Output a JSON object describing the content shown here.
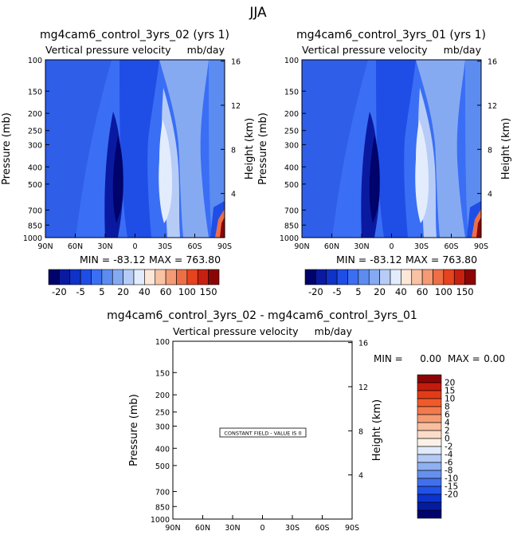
{
  "season": "JJA",
  "panels": [
    {
      "title": "mg4cam6_control_3yrs_02 (yrs 1)",
      "variable": "Vertical pressure velocity",
      "units": "mb/day",
      "min_label": "MIN = -83.12",
      "max_label": "MAX = 763.80"
    },
    {
      "title": "mg4cam6_control_3yrs_01 (yrs 1)",
      "variable": "Vertical pressure velocity",
      "units": "mb/day",
      "min_label": "MIN = -83.12",
      "max_label": "MAX = 763.80"
    }
  ],
  "diff_panel": {
    "title": "mg4cam6_control_3yrs_02 - mg4cam6_control_3yrs_01",
    "variable": "Vertical pressure velocity",
    "units": "mb/day",
    "min_text": "MIN =",
    "min_value": "0.00",
    "max_text": "MAX =",
    "max_value": "0.00",
    "constant_note": "CONSTANT FIELD - VALUE IS 0"
  },
  "chart_data": [
    {
      "type": "heatmap",
      "title": "mg4cam6_control_3yrs_02 (yrs 1)",
      "xlabel": "",
      "ylabel": "Pressure (mb)",
      "y2label": "Height (km)",
      "x_ticks": [
        "90N",
        "60N",
        "30N",
        "0",
        "30S",
        "60S",
        "90S"
      ],
      "y_ticks": [
        "100",
        "150",
        "200",
        "250",
        "300",
        "400",
        "500",
        "700",
        "850",
        "1000"
      ],
      "y2_ticks": [
        "16",
        "12",
        "8",
        "4"
      ],
      "min": -83.12,
      "max": 763.8
    },
    {
      "type": "heatmap",
      "title": "mg4cam6_control_3yrs_01 (yrs 1)",
      "xlabel": "",
      "ylabel": "Pressure (mb)",
      "y2label": "Height (km)",
      "x_ticks": [
        "90N",
        "60N",
        "30N",
        "0",
        "30S",
        "60S",
        "90S"
      ],
      "y_ticks": [
        "100",
        "150",
        "200",
        "250",
        "300",
        "400",
        "500",
        "700",
        "850",
        "1000"
      ],
      "y2_ticks": [
        "16",
        "12",
        "8",
        "4"
      ],
      "min": -83.12,
      "max": 763.8
    },
    {
      "type": "heatmap",
      "title": "mg4cam6_control_3yrs_02 - mg4cam6_control_3yrs_01",
      "ylabel": "Pressure (mb)",
      "y2label": "Height (km)",
      "x_ticks": [
        "90N",
        "60N",
        "30N",
        "0",
        "30S",
        "60S",
        "90S"
      ],
      "y_ticks": [
        "100",
        "150",
        "200",
        "250",
        "300",
        "400",
        "500",
        "700",
        "850",
        "1000"
      ],
      "y2_ticks": [
        "16",
        "12",
        "8",
        "4"
      ],
      "min": 0.0,
      "max": 0.0,
      "constant_value": 0
    }
  ],
  "colorbar_main": {
    "labels": [
      "-20",
      "-5",
      "5",
      "20",
      "40",
      "60",
      "100",
      "150"
    ],
    "colors": [
      "#00036b",
      "#0a1aa0",
      "#0f32c8",
      "#1f4ee6",
      "#3a6ef5",
      "#5c8cf0",
      "#86aaf2",
      "#b6ccf7",
      "#e2ecfc",
      "#fde8d8",
      "#f8c2a3",
      "#f49a74",
      "#ee6e46",
      "#e6431f",
      "#c82010",
      "#8b0506"
    ]
  },
  "colorbar_diff": {
    "labels": [
      "20",
      "15",
      "10",
      "8",
      "6",
      "4",
      "2",
      "0",
      "-2",
      "-4",
      "-6",
      "-8",
      "-10",
      "-15",
      "-20"
    ],
    "colors": [
      "#8b0506",
      "#c31b0e",
      "#e23c17",
      "#f05a2a",
      "#f27a4c",
      "#f59c74",
      "#f8bea0",
      "#fbdcc8",
      "#fdf1e6",
      "#e0ebfb",
      "#b4caf5",
      "#8fb0f1",
      "#6690ee",
      "#4270ec",
      "#2052e8",
      "#0c34cc",
      "#061c9e",
      "#00036b"
    ]
  },
  "y_axis_title": "Pressure (mb)",
  "y2_axis_title": "Height (km)",
  "x_ticks": [
    "90N",
    "60N",
    "30N",
    "0",
    "30S",
    "60S",
    "90S"
  ],
  "y_ticks": [
    "100",
    "150",
    "200",
    "250",
    "300",
    "400",
    "500",
    "700",
    "850",
    "1000"
  ],
  "y2_ticks": [
    "16",
    "12",
    "8",
    "4"
  ]
}
